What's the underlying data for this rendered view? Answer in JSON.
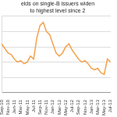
{
  "chart_data": {
    "type": "line",
    "title": "elds on single-B issuers widen to highest level since 2",
    "categories": [
      "Sep-10",
      null,
      "Nov-10",
      null,
      "Jan-11",
      null,
      "Mar-11",
      null,
      "May-11",
      null,
      "Jul-11",
      null,
      "Sep-11",
      null,
      "Nov-11",
      null,
      "Jan-12",
      null,
      "Mar-12",
      null,
      "May-12",
      null,
      "Jul-12",
      null,
      "Sep-12",
      null,
      "Nov-12",
      null,
      "Jan-13",
      null,
      "Mar-13",
      null,
      "May-13",
      null,
      "Jul-13"
    ],
    "values": [
      8.2,
      7.9,
      7.6,
      7.5,
      7.2,
      7.0,
      7.1,
      6.9,
      7.0,
      7.4,
      7.2,
      8.6,
      9.4,
      9.6,
      9.0,
      8.8,
      8.2,
      7.6,
      7.4,
      7.6,
      8.0,
      8.2,
      7.8,
      7.5,
      7.2,
      7.0,
      7.1,
      6.9,
      6.6,
      6.5,
      6.6,
      6.3,
      6.2,
      7.2,
      7.0
    ],
    "color": "#f5a04b",
    "ylim": [
      5,
      10
    ],
    "yticks": [
      5,
      6,
      7,
      8,
      9,
      10
    ],
    "grid": true,
    "tick_labels": "x"
  }
}
